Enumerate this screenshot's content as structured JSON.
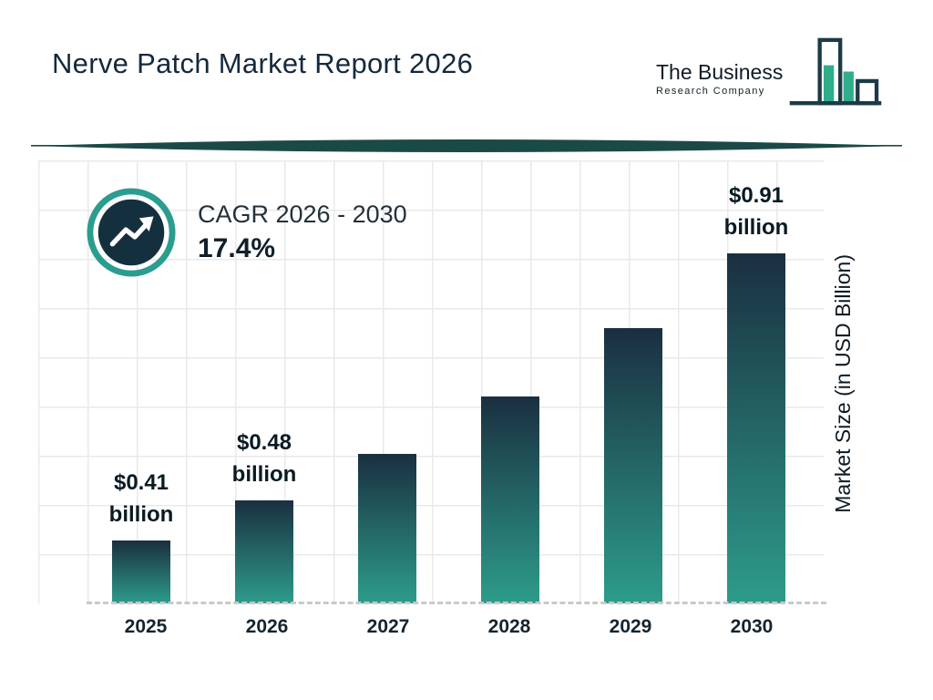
{
  "header": {
    "title": "Nerve Patch Market Report 2026",
    "logo": {
      "line1": "The Business",
      "line2": "Research Company"
    }
  },
  "cagr": {
    "label": "CAGR 2026 - 2030",
    "value": "17.4%"
  },
  "chart_data": {
    "type": "bar",
    "title": "Nerve Patch Market Report 2026",
    "categories": [
      "2025",
      "2026",
      "2027",
      "2028",
      "2029",
      "2030"
    ],
    "values": [
      0.41,
      0.48,
      0.56,
      0.66,
      0.78,
      0.91
    ],
    "bar_labels": [
      {
        "value": "$0.41",
        "unit": "billion",
        "show": true
      },
      {
        "value": "$0.48",
        "unit": "billion",
        "show": true
      },
      {
        "show": false
      },
      {
        "show": false
      },
      {
        "show": false
      },
      {
        "value": "$0.91",
        "unit": "billion",
        "show": true
      }
    ],
    "xlabel": "",
    "ylabel": "Market Size (in USD Billion)",
    "ylim": [
      0.3,
      0.92
    ],
    "grid": true,
    "legend": "none",
    "annotations": [
      {
        "text": "CAGR 2026 - 2030",
        "value": "17.4%"
      }
    ]
  },
  "colors": {
    "bar_top": "#1a2f40",
    "bar_bottom": "#2d9c8b",
    "accent_teal": "#2a9d8f",
    "dark_navy": "#14303f",
    "logo_teal": "#2fae8c",
    "logo_outline": "#1c3a47",
    "divider": "#1b4a46",
    "grid_line": "#e9e9e9",
    "text_dark": "#13242e"
  }
}
